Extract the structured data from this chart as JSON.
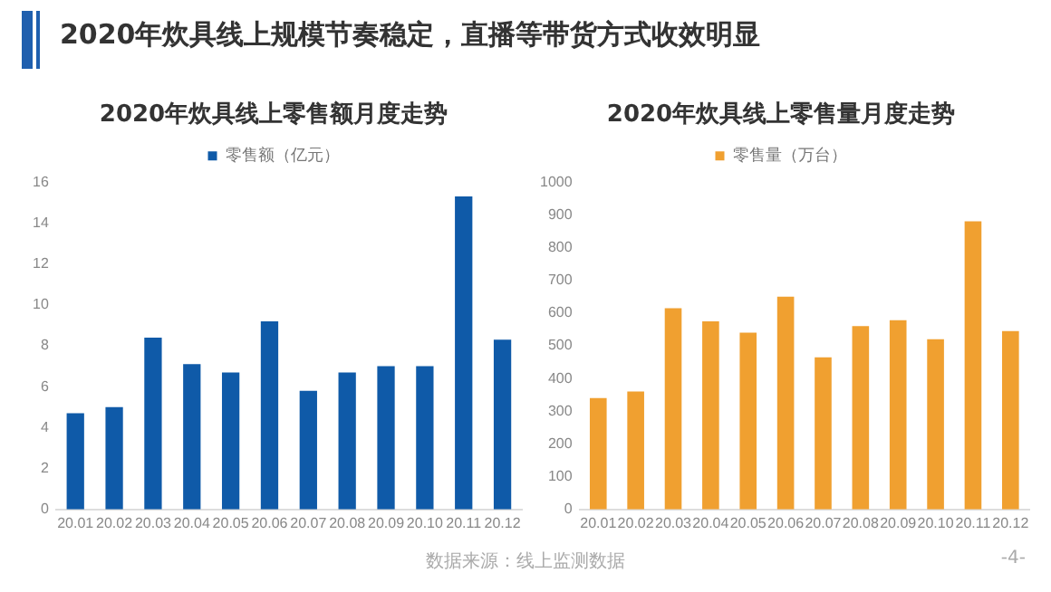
{
  "chart_data": [
    {
      "type": "bar",
      "title": "2020年炊具线上零售额月度走势",
      "annotations": [
        "2020年炊具线上规模节奏稳定，直播等带货方式收效明显"
      ],
      "categories": [
        "20.01",
        "20.02",
        "20.03",
        "20.04",
        "20.05",
        "20.06",
        "20.07",
        "20.08",
        "20.09",
        "20.10",
        "20.11",
        "20.12"
      ],
      "series": [
        {
          "name": "零售额（亿元）",
          "color": "#0f5aa8",
          "values": [
            4.7,
            5.0,
            8.4,
            7.1,
            6.7,
            9.2,
            5.8,
            6.7,
            7.0,
            7.0,
            15.3,
            8.3
          ]
        }
      ],
      "ylim": [
        0,
        16
      ],
      "yticks": [
        0,
        2,
        4,
        6,
        8,
        10,
        12,
        14,
        16
      ],
      "grid": false,
      "legend": "top"
    },
    {
      "type": "bar",
      "title": "2020年炊具线上零售量月度走势",
      "annotations": [
        "数据来源：线上监测数据",
        "-4-"
      ],
      "categories": [
        "20.01",
        "20.02",
        "20.03",
        "20.04",
        "20.05",
        "20.06",
        "20.07",
        "20.08",
        "20.09",
        "20.10",
        "20.11",
        "20.12"
      ],
      "series": [
        {
          "name": "零售量（万台）",
          "color": "#f0a030",
          "values": [
            340,
            360,
            615,
            575,
            540,
            650,
            465,
            560,
            578,
            520,
            880,
            545
          ]
        }
      ],
      "ylim": [
        0,
        1000
      ],
      "yticks": [
        0,
        100,
        200,
        300,
        400,
        500,
        600,
        700,
        800,
        900,
        1000
      ],
      "grid": false,
      "legend": "top"
    }
  ]
}
